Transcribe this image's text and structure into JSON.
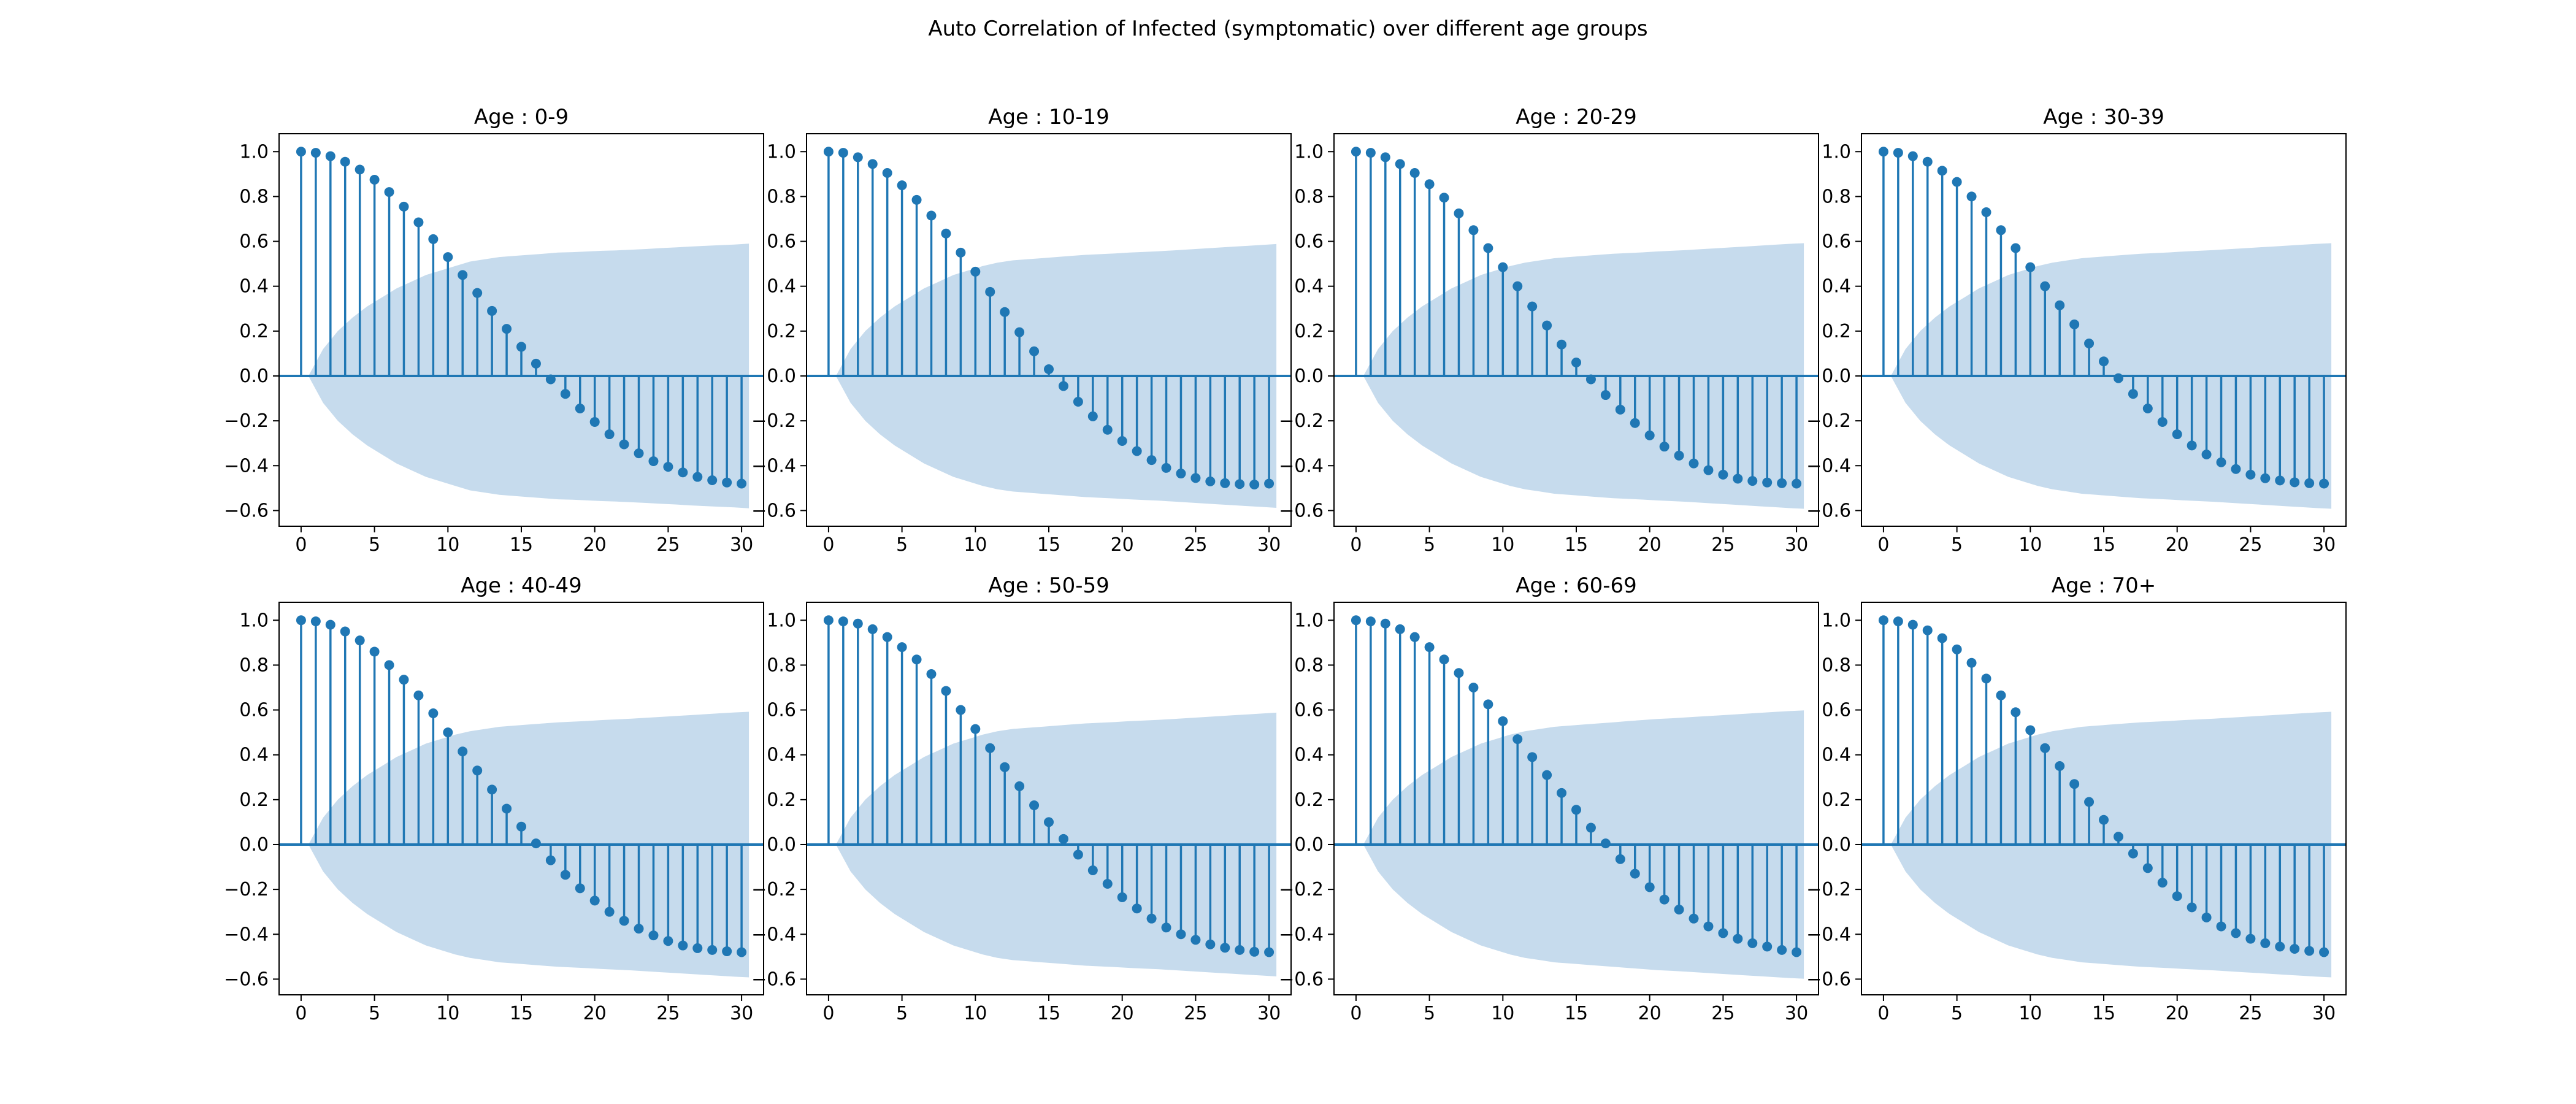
{
  "figure": {
    "title": "Auto Correlation of Infected (symptomatic) over different age groups"
  },
  "colors": {
    "stem": "#1f77b4",
    "band": "#c6dbed",
    "axes": "#000000"
  },
  "chart_data": [
    {
      "type": "stem",
      "title": "Age : 0-9",
      "xlim": [
        -1.5,
        31.5
      ],
      "ylim": [
        -0.67,
        1.08
      ],
      "xticks": [
        0,
        5,
        10,
        15,
        20,
        25,
        30
      ],
      "yticks": [
        -0.6,
        -0.4,
        -0.2,
        0.0,
        0.2,
        0.4,
        0.6,
        0.8,
        1.0
      ],
      "lags": [
        0,
        1,
        2,
        3,
        4,
        5,
        6,
        7,
        8,
        9,
        10,
        11,
        12,
        13,
        14,
        15,
        16,
        17,
        18,
        19,
        20,
        21,
        22,
        23,
        24,
        25,
        26,
        27,
        28,
        29,
        30
      ],
      "values": [
        1.0,
        0.995,
        0.98,
        0.955,
        0.92,
        0.875,
        0.82,
        0.755,
        0.685,
        0.61,
        0.53,
        0.45,
        0.37,
        0.29,
        0.21,
        0.13,
        0.055,
        -0.015,
        -0.08,
        -0.145,
        -0.205,
        -0.26,
        -0.305,
        -0.345,
        -0.38,
        -0.405,
        -0.43,
        -0.45,
        -0.465,
        -0.475,
        -0.48
      ],
      "confidence_upper": [
        0.0,
        0.12,
        0.2,
        0.26,
        0.31,
        0.35,
        0.39,
        0.42,
        0.45,
        0.47,
        0.49,
        0.51,
        0.52,
        0.53,
        0.535,
        0.54,
        0.545,
        0.55,
        0.552,
        0.555,
        0.558,
        0.56,
        0.563,
        0.566,
        0.57,
        0.573,
        0.577,
        0.58,
        0.583,
        0.586,
        0.59
      ]
    },
    {
      "type": "stem",
      "title": "Age : 10-19",
      "xlim": [
        -1.5,
        31.5
      ],
      "ylim": [
        -0.67,
        1.08
      ],
      "xticks": [
        0,
        5,
        10,
        15,
        20,
        25,
        30
      ],
      "yticks": [
        -0.6,
        -0.4,
        -0.2,
        0.0,
        0.2,
        0.4,
        0.6,
        0.8,
        1.0
      ],
      "lags": [
        0,
        1,
        2,
        3,
        4,
        5,
        6,
        7,
        8,
        9,
        10,
        11,
        12,
        13,
        14,
        15,
        16,
        17,
        18,
        19,
        20,
        21,
        22,
        23,
        24,
        25,
        26,
        27,
        28,
        29,
        30
      ],
      "values": [
        1.0,
        0.995,
        0.975,
        0.945,
        0.905,
        0.85,
        0.785,
        0.715,
        0.635,
        0.55,
        0.465,
        0.375,
        0.285,
        0.195,
        0.11,
        0.03,
        -0.045,
        -0.115,
        -0.18,
        -0.24,
        -0.29,
        -0.335,
        -0.375,
        -0.41,
        -0.435,
        -0.455,
        -0.47,
        -0.478,
        -0.482,
        -0.484,
        -0.48
      ],
      "confidence_upper": [
        0.0,
        0.12,
        0.2,
        0.26,
        0.31,
        0.35,
        0.39,
        0.42,
        0.45,
        0.47,
        0.49,
        0.505,
        0.515,
        0.52,
        0.525,
        0.53,
        0.535,
        0.54,
        0.543,
        0.546,
        0.55,
        0.553,
        0.556,
        0.56,
        0.564,
        0.568,
        0.572,
        0.576,
        0.58,
        0.584,
        0.588
      ]
    },
    {
      "type": "stem",
      "title": "Age : 20-29",
      "xlim": [
        -1.5,
        31.5
      ],
      "ylim": [
        -0.67,
        1.08
      ],
      "xticks": [
        0,
        5,
        10,
        15,
        20,
        25,
        30
      ],
      "yticks": [
        -0.6,
        -0.4,
        -0.2,
        0.0,
        0.2,
        0.4,
        0.6,
        0.8,
        1.0
      ],
      "lags": [
        0,
        1,
        2,
        3,
        4,
        5,
        6,
        7,
        8,
        9,
        10,
        11,
        12,
        13,
        14,
        15,
        16,
        17,
        18,
        19,
        20,
        21,
        22,
        23,
        24,
        25,
        26,
        27,
        28,
        29,
        30
      ],
      "values": [
        1.0,
        0.995,
        0.975,
        0.945,
        0.905,
        0.855,
        0.795,
        0.725,
        0.65,
        0.57,
        0.485,
        0.4,
        0.31,
        0.225,
        0.14,
        0.06,
        -0.015,
        -0.085,
        -0.15,
        -0.21,
        -0.265,
        -0.315,
        -0.355,
        -0.39,
        -0.42,
        -0.44,
        -0.458,
        -0.468,
        -0.475,
        -0.478,
        -0.48
      ],
      "confidence_upper": [
        0.0,
        0.12,
        0.2,
        0.26,
        0.31,
        0.35,
        0.39,
        0.42,
        0.45,
        0.47,
        0.49,
        0.505,
        0.515,
        0.525,
        0.53,
        0.535,
        0.54,
        0.545,
        0.548,
        0.551,
        0.555,
        0.558,
        0.561,
        0.565,
        0.569,
        0.573,
        0.577,
        0.581,
        0.585,
        0.589,
        0.592
      ]
    },
    {
      "type": "stem",
      "title": "Age : 30-39",
      "xlim": [
        -1.5,
        31.5
      ],
      "ylim": [
        -0.67,
        1.08
      ],
      "xticks": [
        0,
        5,
        10,
        15,
        20,
        25,
        30
      ],
      "yticks": [
        -0.6,
        -0.4,
        -0.2,
        0.0,
        0.2,
        0.4,
        0.6,
        0.8,
        1.0
      ],
      "lags": [
        0,
        1,
        2,
        3,
        4,
        5,
        6,
        7,
        8,
        9,
        10,
        11,
        12,
        13,
        14,
        15,
        16,
        17,
        18,
        19,
        20,
        21,
        22,
        23,
        24,
        25,
        26,
        27,
        28,
        29,
        30
      ],
      "values": [
        1.0,
        0.995,
        0.98,
        0.955,
        0.915,
        0.865,
        0.8,
        0.73,
        0.65,
        0.57,
        0.485,
        0.4,
        0.315,
        0.23,
        0.145,
        0.065,
        -0.01,
        -0.08,
        -0.145,
        -0.205,
        -0.26,
        -0.31,
        -0.35,
        -0.385,
        -0.415,
        -0.44,
        -0.456,
        -0.466,
        -0.474,
        -0.478,
        -0.48
      ],
      "confidence_upper": [
        0.0,
        0.12,
        0.2,
        0.26,
        0.31,
        0.35,
        0.39,
        0.42,
        0.45,
        0.47,
        0.49,
        0.505,
        0.515,
        0.525,
        0.53,
        0.535,
        0.54,
        0.545,
        0.548,
        0.551,
        0.555,
        0.558,
        0.561,
        0.565,
        0.569,
        0.573,
        0.577,
        0.581,
        0.585,
        0.589,
        0.592
      ]
    },
    {
      "type": "stem",
      "title": "Age : 40-49",
      "xlim": [
        -1.5,
        31.5
      ],
      "ylim": [
        -0.67,
        1.08
      ],
      "xticks": [
        0,
        5,
        10,
        15,
        20,
        25,
        30
      ],
      "yticks": [
        -0.6,
        -0.4,
        -0.2,
        0.0,
        0.2,
        0.4,
        0.6,
        0.8,
        1.0
      ],
      "lags": [
        0,
        1,
        2,
        3,
        4,
        5,
        6,
        7,
        8,
        9,
        10,
        11,
        12,
        13,
        14,
        15,
        16,
        17,
        18,
        19,
        20,
        21,
        22,
        23,
        24,
        25,
        26,
        27,
        28,
        29,
        30
      ],
      "values": [
        1.0,
        0.995,
        0.98,
        0.95,
        0.91,
        0.86,
        0.8,
        0.735,
        0.665,
        0.585,
        0.5,
        0.415,
        0.33,
        0.245,
        0.16,
        0.08,
        0.005,
        -0.07,
        -0.135,
        -0.195,
        -0.25,
        -0.3,
        -0.34,
        -0.375,
        -0.405,
        -0.43,
        -0.45,
        -0.462,
        -0.47,
        -0.476,
        -0.48
      ],
      "confidence_upper": [
        0.0,
        0.12,
        0.2,
        0.26,
        0.31,
        0.35,
        0.39,
        0.42,
        0.45,
        0.47,
        0.49,
        0.505,
        0.515,
        0.525,
        0.53,
        0.535,
        0.54,
        0.545,
        0.548,
        0.551,
        0.555,
        0.558,
        0.561,
        0.565,
        0.569,
        0.573,
        0.577,
        0.581,
        0.585,
        0.589,
        0.592
      ]
    },
    {
      "type": "stem",
      "title": "Age : 50-59",
      "xlim": [
        -1.5,
        31.5
      ],
      "ylim": [
        -0.67,
        1.08
      ],
      "xticks": [
        0,
        5,
        10,
        15,
        20,
        25,
        30
      ],
      "yticks": [
        -0.6,
        -0.4,
        -0.2,
        0.0,
        0.2,
        0.4,
        0.6,
        0.8,
        1.0
      ],
      "lags": [
        0,
        1,
        2,
        3,
        4,
        5,
        6,
        7,
        8,
        9,
        10,
        11,
        12,
        13,
        14,
        15,
        16,
        17,
        18,
        19,
        20,
        21,
        22,
        23,
        24,
        25,
        26,
        27,
        28,
        29,
        30
      ],
      "values": [
        1.0,
        0.995,
        0.985,
        0.96,
        0.925,
        0.88,
        0.825,
        0.76,
        0.685,
        0.6,
        0.515,
        0.43,
        0.345,
        0.26,
        0.175,
        0.1,
        0.025,
        -0.045,
        -0.115,
        -0.175,
        -0.235,
        -0.285,
        -0.33,
        -0.37,
        -0.4,
        -0.425,
        -0.445,
        -0.46,
        -0.47,
        -0.478,
        -0.48
      ],
      "confidence_upper": [
        0.0,
        0.12,
        0.2,
        0.26,
        0.31,
        0.35,
        0.39,
        0.42,
        0.45,
        0.47,
        0.49,
        0.505,
        0.515,
        0.52,
        0.525,
        0.53,
        0.535,
        0.54,
        0.543,
        0.546,
        0.55,
        0.553,
        0.556,
        0.56,
        0.564,
        0.568,
        0.572,
        0.576,
        0.58,
        0.584,
        0.588
      ]
    },
    {
      "type": "stem",
      "title": "Age : 60-69",
      "xlim": [
        -1.5,
        31.5
      ],
      "ylim": [
        -0.67,
        1.08
      ],
      "xticks": [
        0,
        5,
        10,
        15,
        20,
        25,
        30
      ],
      "yticks": [
        -0.6,
        -0.4,
        -0.2,
        0.0,
        0.2,
        0.4,
        0.6,
        0.8,
        1.0
      ],
      "lags": [
        0,
        1,
        2,
        3,
        4,
        5,
        6,
        7,
        8,
        9,
        10,
        11,
        12,
        13,
        14,
        15,
        16,
        17,
        18,
        19,
        20,
        21,
        22,
        23,
        24,
        25,
        26,
        27,
        28,
        29,
        30
      ],
      "values": [
        1.0,
        0.995,
        0.985,
        0.96,
        0.925,
        0.88,
        0.825,
        0.765,
        0.7,
        0.625,
        0.55,
        0.47,
        0.39,
        0.31,
        0.23,
        0.155,
        0.075,
        0.005,
        -0.065,
        -0.13,
        -0.19,
        -0.245,
        -0.29,
        -0.33,
        -0.365,
        -0.395,
        -0.42,
        -0.44,
        -0.455,
        -0.47,
        -0.48
      ],
      "confidence_upper": [
        0.0,
        0.12,
        0.2,
        0.26,
        0.31,
        0.35,
        0.39,
        0.42,
        0.45,
        0.47,
        0.49,
        0.505,
        0.515,
        0.525,
        0.53,
        0.535,
        0.54,
        0.545,
        0.55,
        0.555,
        0.56,
        0.563,
        0.567,
        0.571,
        0.575,
        0.579,
        0.583,
        0.587,
        0.591,
        0.595,
        0.598
      ]
    },
    {
      "type": "stem",
      "title": "Age : 70+",
      "xlim": [
        -1.5,
        31.5
      ],
      "ylim": [
        -0.67,
        1.08
      ],
      "xticks": [
        0,
        5,
        10,
        15,
        20,
        25,
        30
      ],
      "yticks": [
        -0.6,
        -0.4,
        -0.2,
        0.0,
        0.2,
        0.4,
        0.6,
        0.8,
        1.0
      ],
      "lags": [
        0,
        1,
        2,
        3,
        4,
        5,
        6,
        7,
        8,
        9,
        10,
        11,
        12,
        13,
        14,
        15,
        16,
        17,
        18,
        19,
        20,
        21,
        22,
        23,
        24,
        25,
        26,
        27,
        28,
        29,
        30
      ],
      "values": [
        1.0,
        0.995,
        0.98,
        0.955,
        0.92,
        0.87,
        0.81,
        0.74,
        0.665,
        0.59,
        0.51,
        0.43,
        0.35,
        0.27,
        0.19,
        0.11,
        0.035,
        -0.04,
        -0.105,
        -0.17,
        -0.23,
        -0.28,
        -0.325,
        -0.365,
        -0.395,
        -0.42,
        -0.44,
        -0.455,
        -0.465,
        -0.474,
        -0.48
      ],
      "confidence_upper": [
        0.0,
        0.12,
        0.2,
        0.26,
        0.31,
        0.35,
        0.39,
        0.42,
        0.45,
        0.47,
        0.49,
        0.505,
        0.515,
        0.525,
        0.53,
        0.535,
        0.54,
        0.545,
        0.548,
        0.551,
        0.555,
        0.558,
        0.561,
        0.565,
        0.569,
        0.573,
        0.577,
        0.581,
        0.585,
        0.589,
        0.592
      ]
    }
  ]
}
